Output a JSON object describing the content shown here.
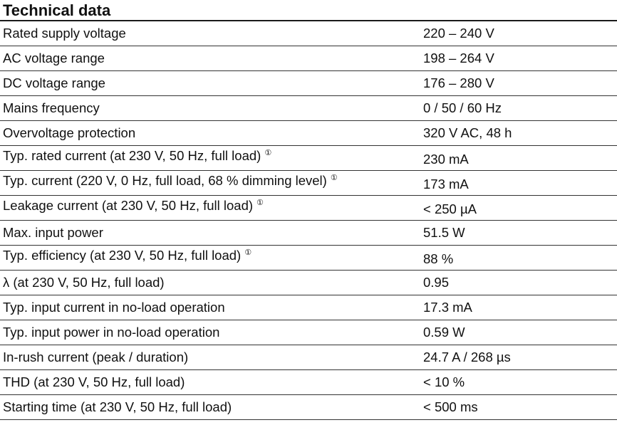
{
  "title": "Technical data",
  "footnote_marker": "①",
  "rows": [
    {
      "label": "Rated supply voltage",
      "value": "220 – 240 V",
      "note": false
    },
    {
      "label": "AC voltage range",
      "value": "198 – 264 V",
      "note": false
    },
    {
      "label": "DC voltage range",
      "value": "176 – 280 V",
      "note": false
    },
    {
      "label": "Mains frequency",
      "value": "0 / 50 / 60 Hz",
      "note": false
    },
    {
      "label": "Overvoltage protection",
      "value": "320 V AC, 48 h",
      "note": false
    },
    {
      "label": "Typ. rated current (at 230 V, 50 Hz, full load)",
      "value": "230 mA",
      "note": true
    },
    {
      "label": "Typ. current (220 V, 0 Hz, full load, 68 % dimming level)",
      "value": "173 mA",
      "note": true
    },
    {
      "label": "Leakage current (at 230 V, 50 Hz, full load)",
      "value": "< 250 µA",
      "note": true
    },
    {
      "label": "Max. input power",
      "value": "51.5 W",
      "note": false
    },
    {
      "label": "Typ. efficiency (at 230 V, 50 Hz, full load)",
      "value": "88 %",
      "note": true
    },
    {
      "label": "λ (at 230 V, 50 Hz, full load)",
      "value": "0.95",
      "note": false
    },
    {
      "label": "Typ. input current in no-load operation",
      "value": "17.3 mA",
      "note": false
    },
    {
      "label": "Typ. input power in no-load operation",
      "value": "0.59 W",
      "note": false
    },
    {
      "label": "In-rush current (peak / duration)",
      "value": "24.7 A / 268 µs",
      "note": false
    },
    {
      "label": "THD (at 230 V, 50 Hz, full load)",
      "value": "< 10 %",
      "note": false
    },
    {
      "label": "Starting time (at 230 V, 50 Hz, full load)",
      "value": "< 500 ms",
      "note": false
    }
  ]
}
